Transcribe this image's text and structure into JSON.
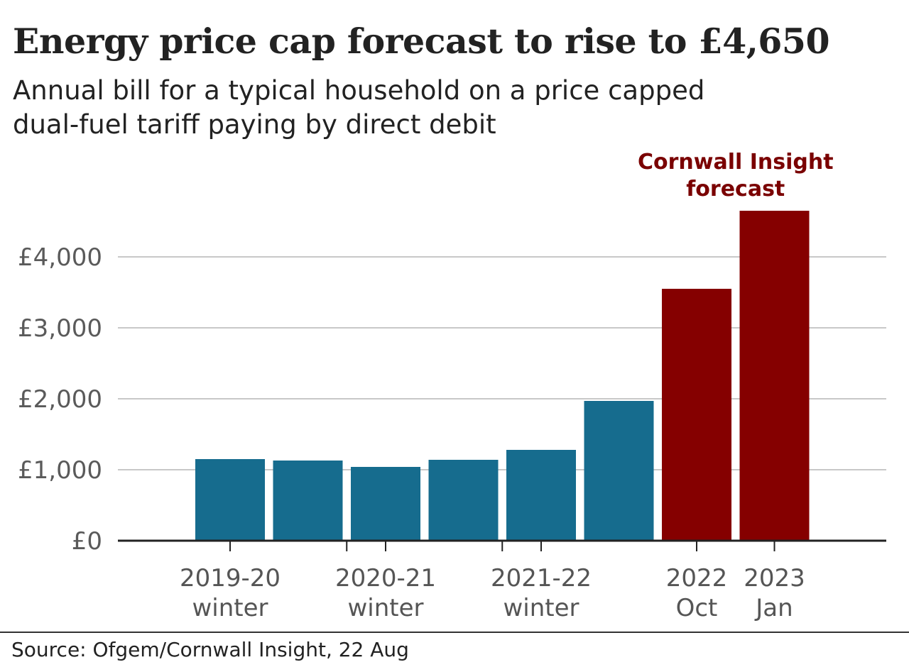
{
  "title": "Energy price cap forecast to rise to £4,650",
  "subtitle_lines": [
    "Annual bill for a typical household on a price capped",
    "dual-fuel tariff paying by direct debit"
  ],
  "annotation_lines": [
    "Cornwall Insight",
    "forecast"
  ],
  "source": "Source: Ofgem/Cornwall Insight, 22 Aug",
  "colors": {
    "actual": "#166c8e",
    "forecast": "#850000",
    "annotation": "#7a0000",
    "grid": "#c8c8c8",
    "axis": "#222222"
  },
  "chart_data": {
    "type": "bar",
    "title": "Energy price cap forecast to rise to £4,650",
    "subtitle": "Annual bill for a typical household on a price capped dual-fuel tariff paying by direct debit",
    "values": [
      1150,
      1130,
      1040,
      1140,
      1280,
      1970,
      3550,
      4650
    ],
    "forecast_flags": [
      false,
      false,
      false,
      false,
      false,
      false,
      true,
      true
    ],
    "category_labels": [
      {
        "lines": [
          "2019-20",
          "winter"
        ],
        "bar_index": 0
      },
      {
        "lines": [
          "2020-21",
          "winter"
        ],
        "bar_index": 2
      },
      {
        "lines": [
          "2021-22",
          "winter"
        ],
        "bar_index": 4
      },
      {
        "lines": [
          "2022",
          "Oct"
        ],
        "bar_index": 6
      },
      {
        "lines": [
          "2023",
          "Jan"
        ],
        "bar_index": 7
      }
    ],
    "y_ticks": [
      0,
      1000,
      2000,
      3000,
      4000
    ],
    "y_tick_labels": [
      "£0",
      "£1,000",
      "£2,000",
      "£3,000",
      "£4,000"
    ],
    "ylim": [
      0,
      4650
    ],
    "xlabel": "",
    "ylabel": "",
    "grid": true,
    "annotation": "Cornwall Insight forecast"
  }
}
